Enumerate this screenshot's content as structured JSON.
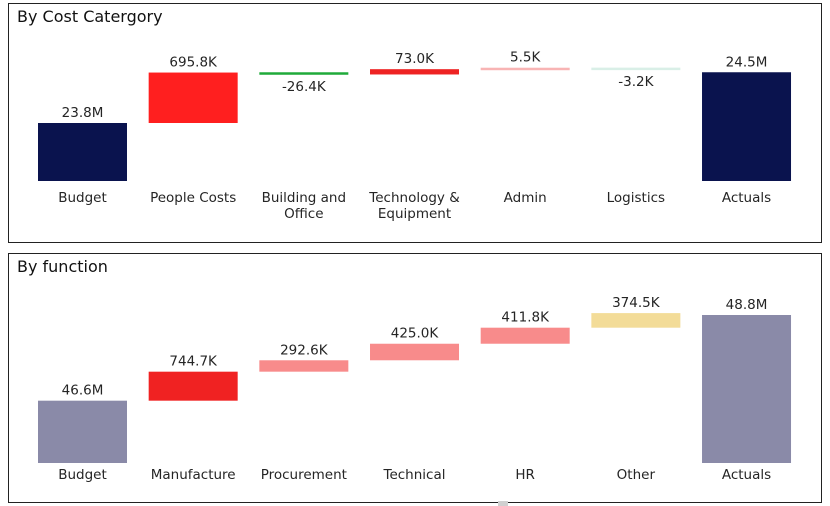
{
  "chart_data": [
    {
      "type": "waterfall",
      "title": "By Cost Catergory",
      "categories": [
        "Budget",
        "People Costs",
        "Building and Office",
        "Technology & Equipment",
        "Admin",
        "Logistics",
        "Actuals"
      ],
      "category_lines": [
        [
          "Budget"
        ],
        [
          "People Costs"
        ],
        [
          "Building and",
          "Office"
        ],
        [
          "Technology &",
          "Equipment"
        ],
        [
          "Admin"
        ],
        [
          "Logistics"
        ],
        [
          "Actuals"
        ]
      ],
      "values": [
        23800000,
        695800,
        -26400,
        73000,
        5500,
        -3200,
        24500000
      ],
      "labels": [
        "23.8M",
        "695.8K",
        "-26.4K",
        "73.0K",
        "5.5K",
        "-3.2K",
        "24.5M"
      ],
      "kinds": [
        "total",
        "delta",
        "delta",
        "delta",
        "delta",
        "delta",
        "total"
      ],
      "colors": [
        "#0a134e",
        "#ff1f1f",
        "#1faa3a",
        "#ee2323",
        "#f8b4b4",
        "#d9efe7",
        "#0a134e"
      ],
      "ylim": [
        23000000,
        24600000
      ]
    },
    {
      "type": "waterfall",
      "title": "By function",
      "categories": [
        "Budget",
        "Manufacture",
        "Procurement",
        "Technical",
        "HR",
        "Other",
        "Actuals"
      ],
      "category_lines": [
        [
          "Budget"
        ],
        [
          "Manufacture"
        ],
        [
          "Procurement"
        ],
        [
          "Technical"
        ],
        [
          "HR"
        ],
        [
          "Other"
        ],
        [
          "Actuals"
        ]
      ],
      "values": [
        46600000,
        744700,
        292600,
        425000,
        411800,
        374500,
        48800000
      ],
      "labels": [
        "46.6M",
        "744.7K",
        "292.6K",
        "425.0K",
        "411.8K",
        "374.5K",
        "48.8M"
      ],
      "kinds": [
        "total",
        "delta",
        "delta",
        "delta",
        "delta",
        "delta",
        "total"
      ],
      "colors": [
        "#8a8aa8",
        "#f02222",
        "#f88b8b",
        "#f88b8b",
        "#f88b8b",
        "#f3dc98",
        "#8a8aa8"
      ],
      "ylim": [
        45000000,
        48800000
      ]
    }
  ]
}
